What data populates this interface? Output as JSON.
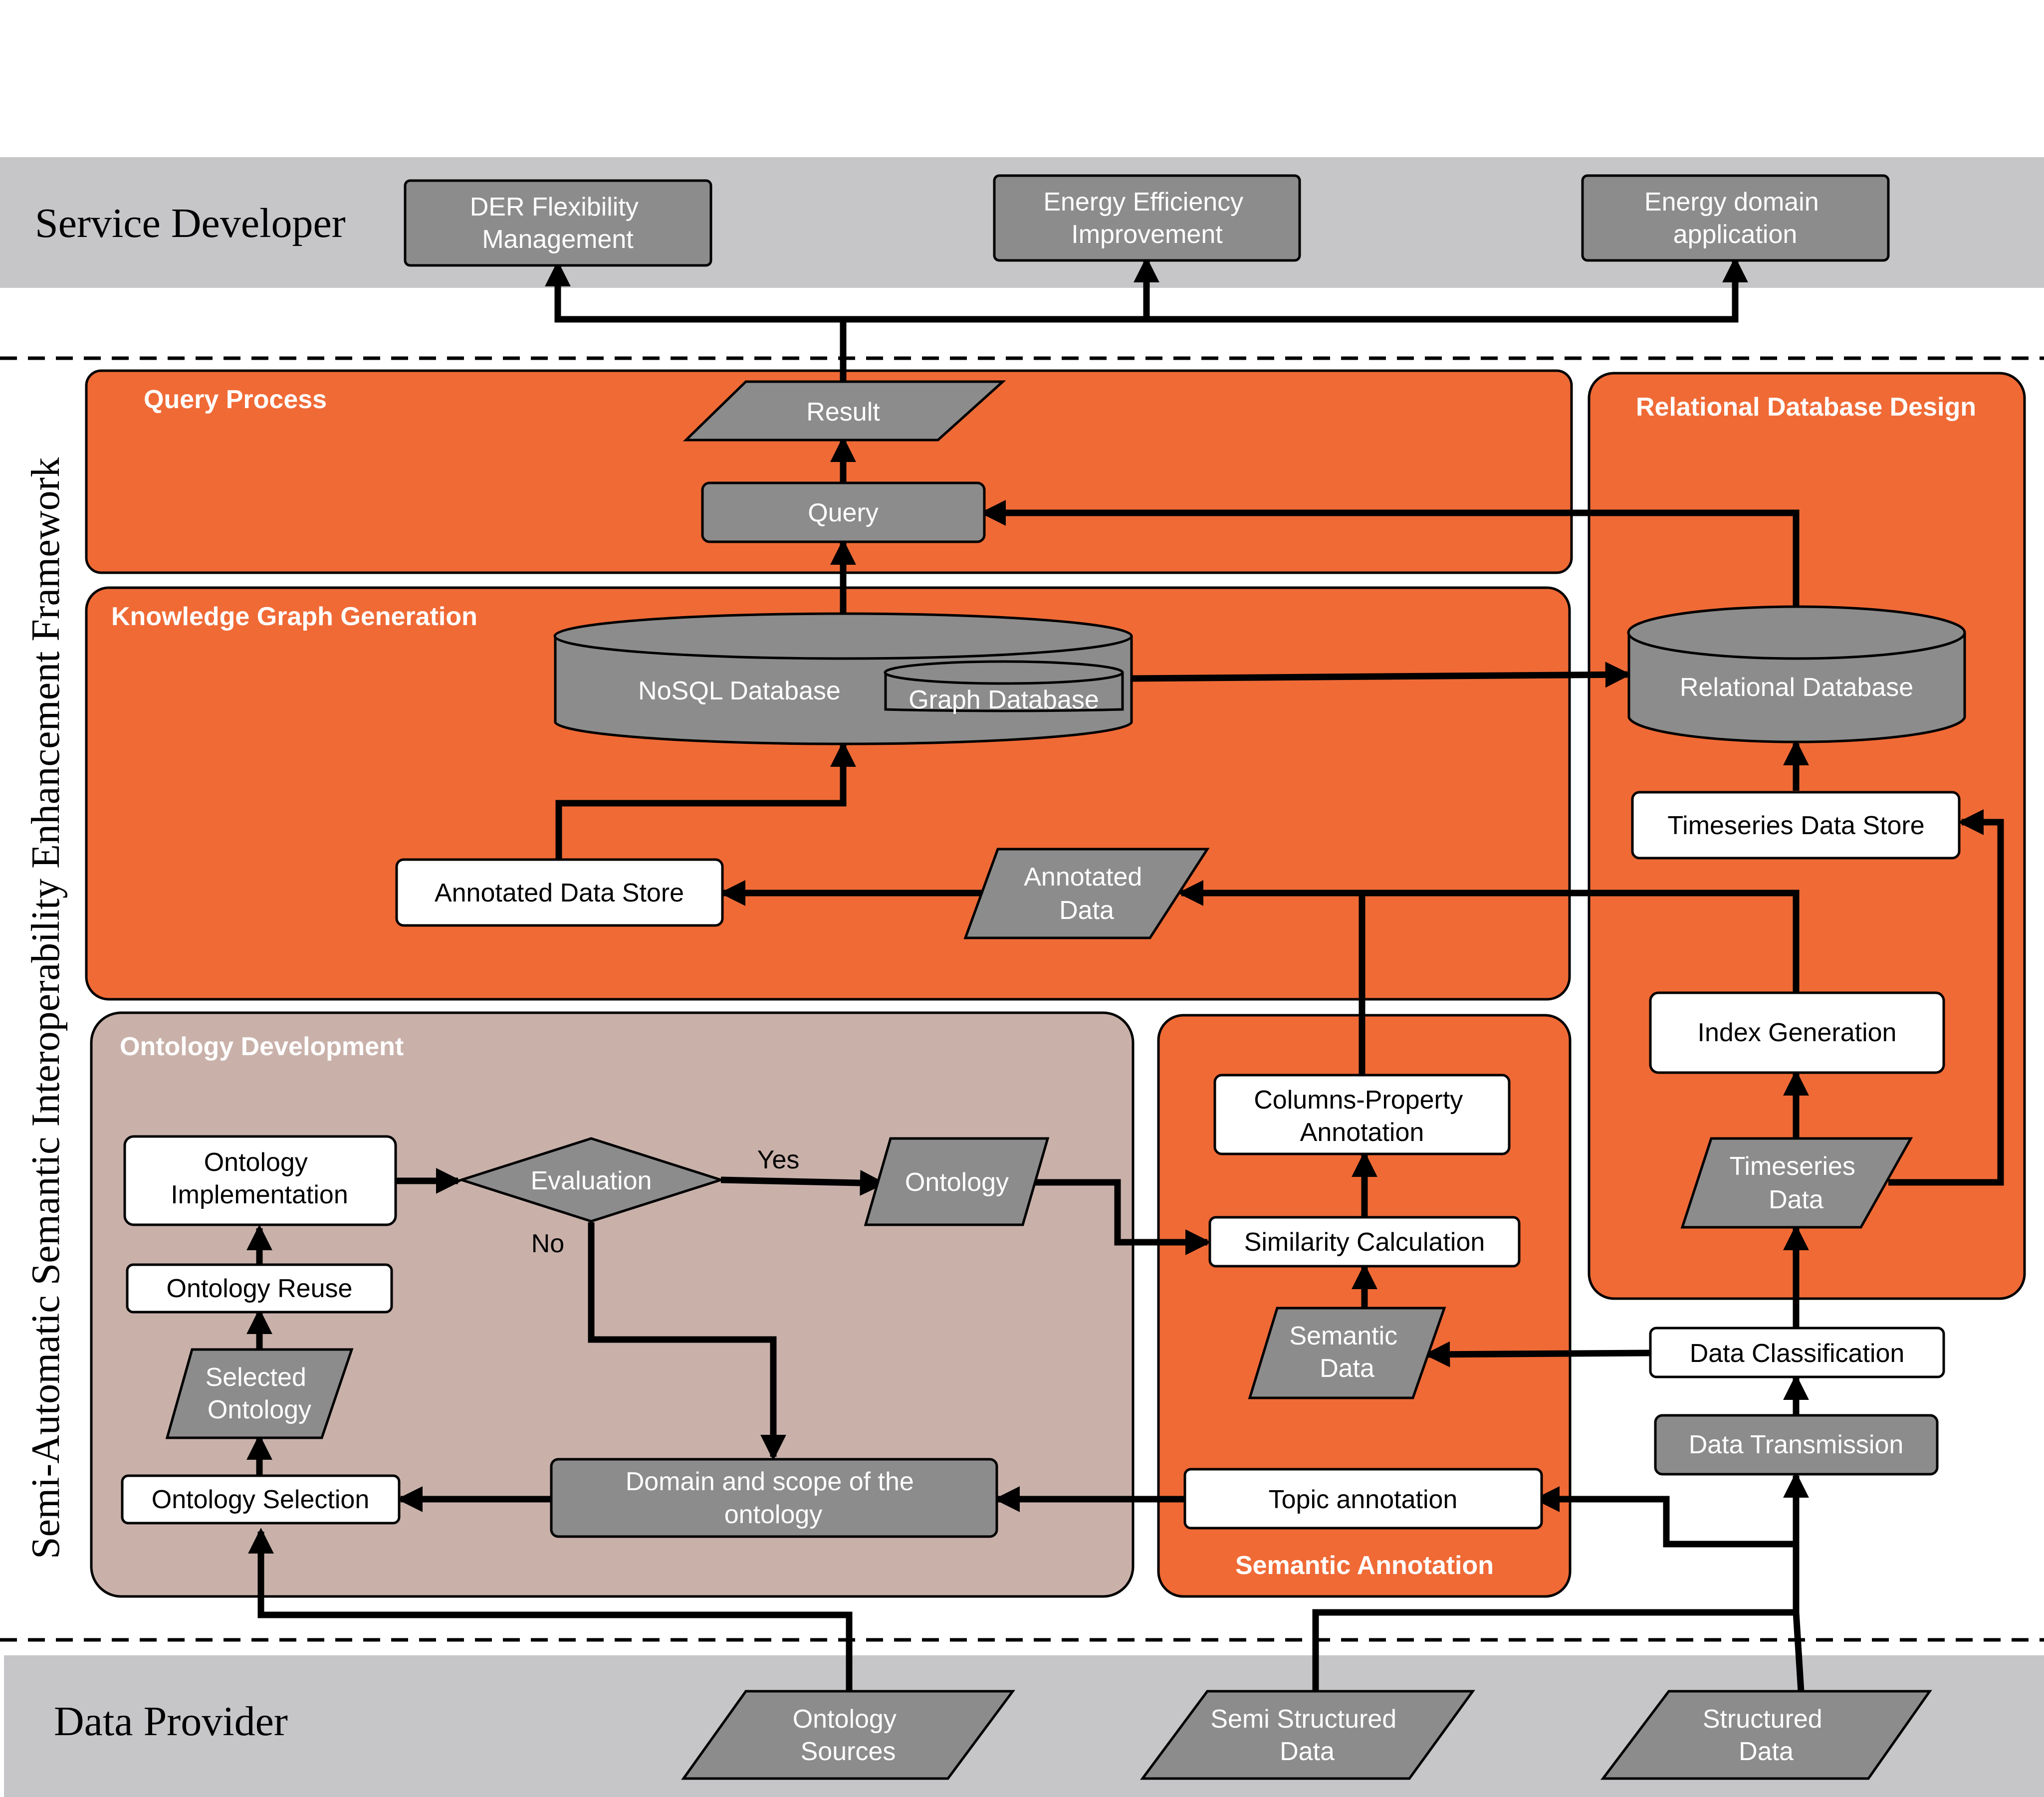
{
  "layers": {
    "service_developer": "Service Developer",
    "data_provider": "Data Provider",
    "framework": "Semi-Automatic Semantic Interoperability Enhancement Framework"
  },
  "groups": {
    "query_process": "Query Process",
    "knowledge_graph": "Knowledge Graph Generation",
    "relational_db_design": "Relational Database Design",
    "ontology_development": "Ontology Development",
    "semantic_annotation": "Semantic Annotation"
  },
  "services": {
    "der": [
      "DER Flexibility",
      "Management"
    ],
    "efficiency": [
      "Energy Efficiency",
      "Improvement"
    ],
    "domain_app": [
      "Energy domain",
      "application"
    ]
  },
  "query": {
    "result": "Result",
    "query": "Query"
  },
  "kg": {
    "nosql": "NoSQL Database",
    "graph": "Graph Database",
    "annotated_store": "Annotated Data Store",
    "annotated_data": [
      "Annotated",
      "Data"
    ]
  },
  "rdb": {
    "relational": "Relational Database",
    "timeseries_store": "Timeseries Data Store",
    "index_generation": "Index Generation",
    "timeseries_data": [
      "Timeseries",
      "Data"
    ],
    "data_classification": "Data Classification",
    "data_transmission": "Data Transmission"
  },
  "ontology": {
    "implementation": [
      "Ontology",
      "Implementation"
    ],
    "evaluation": "Evaluation",
    "ontology": "Ontology",
    "yes": "Yes",
    "no": "No",
    "reuse": "Ontology Reuse",
    "selected": [
      "Selected",
      "Ontology"
    ],
    "selection": "Ontology Selection",
    "domain_scope": [
      "Domain and scope of the",
      "ontology"
    ]
  },
  "annotation": {
    "columns_property": [
      "Columns-Property",
      "Annotation"
    ],
    "similarity": "Similarity Calculation",
    "semantic_data": [
      "Semantic",
      "Data"
    ],
    "topic": "Topic annotation"
  },
  "sources": {
    "ontology_sources": [
      "Ontology",
      "Sources"
    ],
    "semi_structured": [
      "Semi Structured",
      "Data"
    ],
    "structured": [
      "Structured",
      "Data"
    ]
  }
}
